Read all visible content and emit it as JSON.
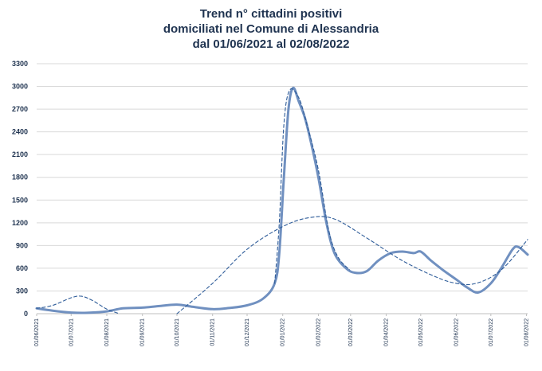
{
  "chart_data": {
    "type": "line",
    "title": [
      "Trend n° cittadini positivi",
      "domiciliati nel Comune di Alessandria",
      "dal 01/06/2021 al 02/08/2022"
    ],
    "xlabel": "",
    "ylabel": "",
    "x_range": [
      "01/06/2021",
      "02/08/2022"
    ],
    "ylim": [
      0,
      3300
    ],
    "yticks": [
      0,
      300,
      600,
      900,
      1200,
      1500,
      1800,
      2100,
      2400,
      2700,
      3000,
      3300
    ],
    "xticks": [
      "01/06/2021",
      "01/07/2021",
      "01/08/2021",
      "01/09/2021",
      "01/10/2021",
      "01/11/2021",
      "01/12/2021",
      "01/01/2022",
      "01/02/2022",
      "01/03/2022",
      "01/04/2022",
      "01/05/2022",
      "01/06/2022",
      "01/07/2022",
      "01/08/2022"
    ],
    "grid": true,
    "legend": "none",
    "colors": {
      "series": "#7090c0",
      "trend": "#2e5c99",
      "text": "#1f3350",
      "grid": "#d9d9d9"
    },
    "series": [
      {
        "style": "solid",
        "points": [
          [
            "01/06/2021",
            70
          ],
          [
            "15/06/2021",
            40
          ],
          [
            "01/07/2021",
            15
          ],
          [
            "15/07/2021",
            12
          ],
          [
            "01/08/2021",
            30
          ],
          [
            "15/08/2021",
            70
          ],
          [
            "01/09/2021",
            80
          ],
          [
            "15/09/2021",
            100
          ],
          [
            "01/10/2021",
            120
          ],
          [
            "15/10/2021",
            90
          ],
          [
            "01/11/2021",
            60
          ],
          [
            "15/11/2021",
            75
          ],
          [
            "01/12/2021",
            110
          ],
          [
            "15/12/2021",
            200
          ],
          [
            "25/12/2021",
            400
          ],
          [
            "29/12/2021",
            800
          ],
          [
            "02/01/2022",
            1800
          ],
          [
            "06/01/2022",
            2700
          ],
          [
            "10/01/2022",
            2980
          ],
          [
            "15/01/2022",
            2800
          ],
          [
            "20/01/2022",
            2600
          ],
          [
            "25/01/2022",
            2300
          ],
          [
            "01/02/2022",
            1800
          ],
          [
            "08/02/2022",
            1200
          ],
          [
            "15/02/2022",
            800
          ],
          [
            "25/02/2022",
            600
          ],
          [
            "05/03/2022",
            540
          ],
          [
            "15/03/2022",
            560
          ],
          [
            "25/03/2022",
            700
          ],
          [
            "05/04/2022",
            800
          ],
          [
            "15/04/2022",
            820
          ],
          [
            "25/04/2022",
            800
          ],
          [
            "01/05/2022",
            820
          ],
          [
            "10/05/2022",
            700
          ],
          [
            "20/05/2022",
            580
          ],
          [
            "01/06/2022",
            450
          ],
          [
            "10/06/2022",
            350
          ],
          [
            "20/06/2022",
            280
          ],
          [
            "01/07/2022",
            400
          ],
          [
            "10/07/2022",
            600
          ],
          [
            "20/07/2022",
            850
          ],
          [
            "25/07/2022",
            880
          ],
          [
            "02/08/2022",
            780
          ]
        ]
      },
      {
        "style": "dashed",
        "points": [
          [
            "01/06/2021",
            70
          ],
          [
            "15/06/2021",
            110
          ],
          [
            "01/07/2021",
            210
          ],
          [
            "10/07/2021",
            230
          ],
          [
            "20/07/2021",
            170
          ],
          [
            "01/08/2021",
            60
          ],
          [
            "12/08/2021",
            0
          ]
        ]
      },
      {
        "style": "dashed",
        "points": [
          [
            "01/10/2021",
            0
          ],
          [
            "01/11/2021",
            400
          ],
          [
            "01/12/2021",
            850
          ],
          [
            "01/01/2022",
            1150
          ],
          [
            "25/01/2022",
            1270
          ],
          [
            "15/02/2022",
            1250
          ],
          [
            "15/03/2022",
            1000
          ],
          [
            "15/04/2022",
            700
          ],
          [
            "15/05/2022",
            480
          ],
          [
            "01/06/2022",
            400
          ],
          [
            "15/06/2022",
            390
          ],
          [
            "01/07/2022",
            480
          ],
          [
            "15/07/2022",
            650
          ],
          [
            "02/08/2022",
            980
          ]
        ]
      },
      {
        "style": "dashed",
        "points": [
          [
            "25/12/2021",
            400
          ],
          [
            "29/12/2021",
            1200
          ],
          [
            "02/01/2022",
            2500
          ],
          [
            "07/01/2022",
            2950
          ],
          [
            "15/01/2022",
            2850
          ],
          [
            "22/01/2022",
            2500
          ],
          [
            "01/02/2022",
            1900
          ],
          [
            "10/02/2022",
            1100
          ],
          [
            "18/02/2022",
            750
          ],
          [
            "28/02/2022",
            580
          ]
        ]
      }
    ]
  }
}
